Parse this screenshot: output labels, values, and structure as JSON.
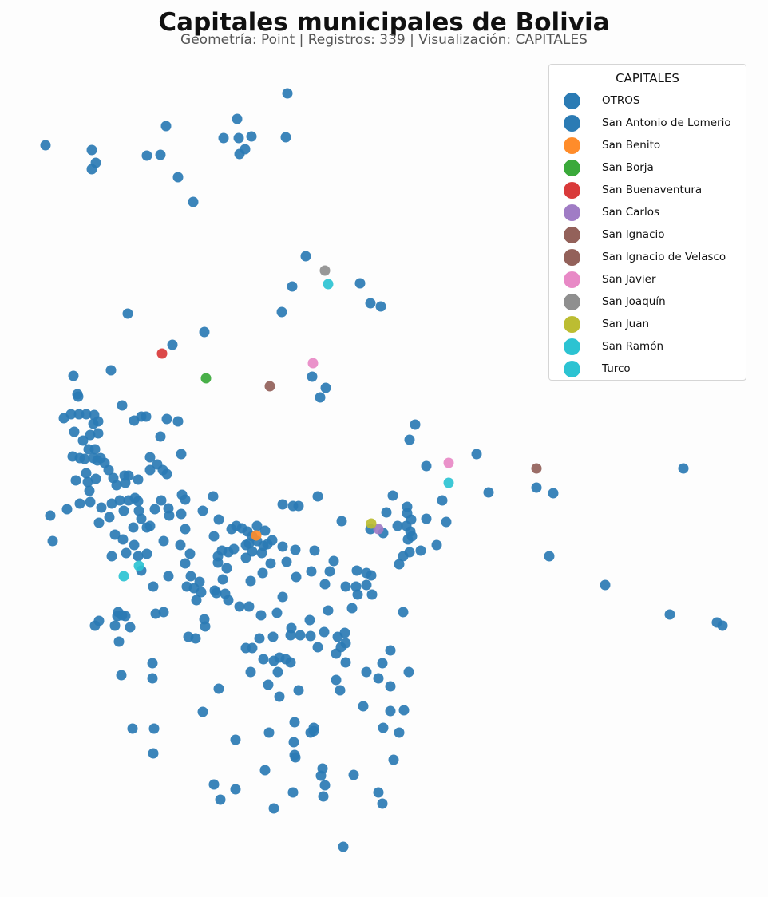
{
  "title": "Capitales municipales de Bolivia",
  "subtitle": "Geometría: Point | Registros: 339 | Visualización: CAPITALES",
  "legend": {
    "title": "CAPITALES",
    "items": [
      {
        "label": "OTROS",
        "color": "#2b7bb4"
      },
      {
        "label": "San Antonio de Lomerio",
        "color": "#2b7bb4"
      },
      {
        "label": "San Benito",
        "color": "#ff8c2a"
      },
      {
        "label": "San Borja",
        "color": "#3aa93a"
      },
      {
        "label": "San Buenaventura",
        "color": "#d93a3a"
      },
      {
        "label": "San Carlos",
        "color": "#a07cc5"
      },
      {
        "label": "San Ignacio",
        "color": "#93615a"
      },
      {
        "label": "San Ignacio de Velasco",
        "color": "#93615a"
      },
      {
        "label": "San Javier",
        "color": "#e889c6"
      },
      {
        "label": "San Joaquín",
        "color": "#8f8f8f"
      },
      {
        "label": "San Juan",
        "color": "#bcbd32"
      },
      {
        "label": "San Ramón",
        "color": "#2cc3d2"
      },
      {
        "label": "Turco",
        "color": "#2cc3d2"
      }
    ]
  }
}
